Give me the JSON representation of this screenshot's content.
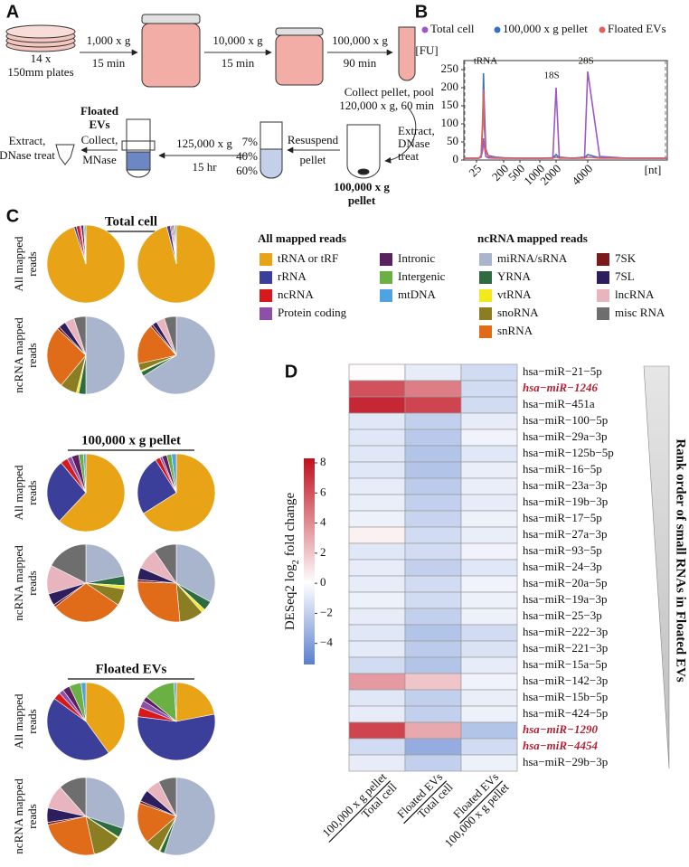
{
  "diagram": {
    "label": "A",
    "plates": [
      "14 x",
      "150mm plates"
    ],
    "spins": [
      {
        "speed": "1,000 x g",
        "time": "15 min"
      },
      {
        "speed": "10,000 x g",
        "time": "15 min"
      },
      {
        "speed": "100,000 x g",
        "time": "90 min"
      }
    ],
    "collect": [
      "Collect pellet, pool",
      "120,000 x g, 60 min"
    ],
    "extract1": [
      "Extract,",
      "DNase",
      "treat"
    ],
    "pellet": [
      "100,000 x g",
      "pellet"
    ],
    "resuspend": [
      "Resuspend",
      "pellet"
    ],
    "gradient": [
      "7%",
      "40%",
      "60%"
    ],
    "float_spin": {
      "speed": "125,000 x g",
      "time": "15 hr"
    },
    "collect2": [
      "Collect,",
      "MNase"
    ],
    "floated": [
      "Floated",
      "EVs"
    ],
    "extract2": [
      "Extract,",
      "DNase treat"
    ]
  },
  "chart_data": [
    {
      "panel": "B",
      "type": "line",
      "y_unit": "[FU]",
      "x_unit": "[nt]",
      "peaks": [
        "tRNA",
        "18S",
        "28S"
      ],
      "x": [
        15,
        20,
        25,
        40,
        55,
        65,
        70,
        75,
        85,
        100,
        150,
        200,
        500,
        1000,
        1800,
        2000,
        2200,
        3000,
        3800,
        4000,
        4300,
        5000,
        6000
      ],
      "series": [
        {
          "name": "Total cell",
          "color": "#9b59c6",
          "values": [
            5,
            5,
            5,
            5,
            8,
            30,
            60,
            40,
            10,
            6,
            5,
            5,
            5,
            5,
            5,
            200,
            8,
            5,
            8,
            245,
            10,
            5,
            5
          ]
        },
        {
          "name": "100,000 x g pellet",
          "color": "#3a6fc4",
          "values": [
            5,
            5,
            5,
            5,
            10,
            100,
            240,
            150,
            30,
            12,
            8,
            6,
            5,
            5,
            6,
            15,
            6,
            5,
            6,
            15,
            6,
            5,
            5
          ]
        },
        {
          "name": "Floated EVs",
          "color": "#e06060",
          "values": [
            5,
            5,
            5,
            5,
            12,
            120,
            195,
            90,
            25,
            10,
            6,
            5,
            5,
            5,
            5,
            8,
            5,
            5,
            5,
            8,
            5,
            5,
            5
          ]
        }
      ],
      "xlim": [
        15,
        6000
      ],
      "xticks": [
        25,
        200,
        500,
        1000,
        2000,
        4000
      ],
      "ylim": [
        0,
        260
      ],
      "yticks": [
        0,
        50,
        100,
        150,
        200,
        250
      ]
    },
    {
      "panel": "C",
      "type": "pie",
      "row_labels": {
        "all": [
          "All mapped",
          "reads"
        ],
        "ncrna": [
          "ncRNA mapped",
          "reads"
        ]
      },
      "legends": {
        "all": {
          "title": "All mapped reads",
          "names": [
            "tRNA or tRF",
            "rRNA",
            "ncRNA",
            "Protein coding",
            "Intronic",
            "Intergenic",
            "mtDNA"
          ],
          "colors": [
            "#e8a317",
            "#3b3f9a",
            "#d7191c",
            "#8e4fa8",
            "#5a2060",
            "#6bb043",
            "#4fa3e0"
          ]
        },
        "ncrna": {
          "title": "ncRNA mapped reads",
          "names": [
            "miRNA/sRNA",
            "YRNA",
            "vtRNA",
            "snoRNA",
            "snRNA",
            "7SK",
            "7SL",
            "lncRNA",
            "misc RNA"
          ],
          "colors": [
            "#a8b5cc",
            "#2e6b40",
            "#f2ea1c",
            "#8b7d22",
            "#e06c1a",
            "#7a1a1a",
            "#2d1f5e",
            "#e8b4be",
            "#6e6e6e"
          ]
        }
      },
      "groups": [
        {
          "title": "Total cell",
          "all": [
            [
              95,
              1,
              1.5,
              0.5,
              1,
              0.5,
              0.5
            ],
            [
              96,
              1.5,
              0.5,
              0.5,
              0.5,
              0.5,
              0.5
            ]
          ],
          "ncrna": [
            [
              50,
              3,
              1,
              7,
              26,
              1,
              3,
              4,
              5
            ],
            [
              66,
              2,
              0.5,
              3,
              17,
              1,
              2,
              3.5,
              5
            ]
          ]
        },
        {
          "title": "100,000 x g pellet",
          "all": [
            [
              62,
              27,
              3,
              2,
              3,
              2,
              1
            ],
            [
              66,
              25,
              2,
              1,
              2,
              2,
              2
            ]
          ],
          "ncrna": [
            [
              22,
              4,
              1.5,
              7,
              30,
              1,
              5,
              12,
              17.5
            ],
            [
              33,
              4,
              1.5,
              10,
              27,
              1,
              5,
              9,
              9.5
            ]
          ]
        },
        {
          "title": "Floated EVs",
          "all": [
            [
              40,
              45,
              3,
              2,
              3,
              5,
              2
            ],
            [
              22,
              55,
              4,
              3,
              2,
              13,
              1
            ]
          ],
          "ncrna": [
            [
              30,
              4,
              0.5,
              12,
              25,
              1,
              6,
              10,
              11.5
            ],
            [
              55,
              2,
              0.5,
              6,
              17,
              1,
              5,
              6,
              7.5
            ]
          ]
        }
      ]
    },
    {
      "panel": "D",
      "type": "heatmap",
      "columns": [
        {
          "top": "100,000 x g pellet",
          "bottom": "Total cell"
        },
        {
          "top": "Floated EVs",
          "bottom": "Total cell"
        },
        {
          "top": "Floated EVs",
          "bottom": "100,000 x g pellet"
        }
      ],
      "rows": [
        {
          "name": "hsa−miR−21−5p",
          "values": [
            0.1,
            -0.8,
            -1.5
          ]
        },
        {
          "name": "hsa−miR−1246",
          "values": [
            6,
            4.5,
            -1.5
          ],
          "highlight": true
        },
        {
          "name": "hsa−miR−451a",
          "values": [
            7.5,
            6.5,
            -1.5
          ]
        },
        {
          "name": "hsa−miR−100−5p",
          "values": [
            -1,
            -2,
            -0.8
          ]
        },
        {
          "name": "hsa−miR−29a−3p",
          "values": [
            -1,
            -2.3,
            -0.5
          ]
        },
        {
          "name": "hsa−miR−125b−5p",
          "values": [
            -1,
            -2.5,
            -1
          ]
        },
        {
          "name": "hsa−miR−16−5p",
          "values": [
            -1,
            -2.5,
            -0.7
          ]
        },
        {
          "name": "hsa−miR−23a−3p",
          "values": [
            -0.8,
            -2.2,
            -0.7
          ]
        },
        {
          "name": "hsa−miR−19b−3p",
          "values": [
            -0.7,
            -2,
            -0.8
          ]
        },
        {
          "name": "hsa−miR−17−5p",
          "values": [
            -0.6,
            -1.8,
            -0.6
          ]
        },
        {
          "name": "hsa−miR−27a−3p",
          "values": [
            0.5,
            -1.5,
            -0.7
          ]
        },
        {
          "name": "hsa−miR−93−5p",
          "values": [
            -1,
            -1.5,
            -0.5
          ]
        },
        {
          "name": "hsa−miR−24−3p",
          "values": [
            -0.8,
            -2,
            -1
          ]
        },
        {
          "name": "hsa−miR−20a−5p",
          "values": [
            -0.8,
            -1.5,
            -0.5
          ]
        },
        {
          "name": "hsa−miR−19a−3p",
          "values": [
            -0.6,
            -1.5,
            -0.6
          ]
        },
        {
          "name": "hsa−miR−25−3p",
          "values": [
            -0.8,
            -2,
            -0.6
          ]
        },
        {
          "name": "hsa−miR−222−3p",
          "values": [
            -1,
            -2.5,
            -1.5
          ]
        },
        {
          "name": "hsa−miR−221−3p",
          "values": [
            -0.9,
            -2.2,
            -1.2
          ]
        },
        {
          "name": "hsa−miR−15a−5p",
          "values": [
            -1.5,
            -2.5,
            -0.8
          ]
        },
        {
          "name": "hsa−miR−142−3p",
          "values": [
            3.5,
            2,
            -0.5
          ]
        },
        {
          "name": "hsa−miR−15b−5p",
          "values": [
            -1,
            -2,
            -0.7
          ]
        },
        {
          "name": "hsa−miR−424−5p",
          "values": [
            -0.8,
            -2,
            -0.6
          ]
        },
        {
          "name": "hsa−miR−1290",
          "values": [
            6.5,
            3,
            -2.5
          ],
          "highlight": true
        },
        {
          "name": "hsa−miR−4454",
          "values": [
            -1.5,
            -3.5,
            -1.5
          ],
          "highlight": true
        },
        {
          "name": "hsa−miR−29b−3p",
          "values": [
            -0.8,
            -2,
            -0.6
          ]
        }
      ],
      "colorbar": {
        "label": {
          "text": "DESeq2 log",
          "sub": "2",
          "rest": "fold change"
        },
        "clim": [
          -5.4,
          8.3
        ],
        "low_color": "#5a7fcf",
        "high_color": "#c0101e",
        "ticks": [
          {
            "value": -4,
            "label": "−4"
          },
          {
            "value": -2,
            "label": "−2"
          },
          0,
          2,
          4,
          6,
          8
        ]
      },
      "side_label": "Rank order of small RNAs in Floated EVs"
    }
  ]
}
